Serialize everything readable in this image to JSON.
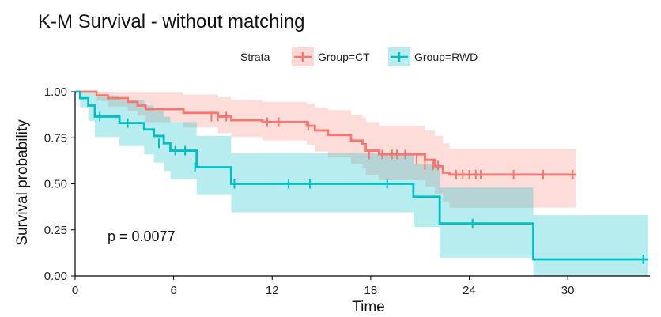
{
  "chart_data": {
    "type": "line",
    "subtype": "kaplan-meier-step",
    "title": "K-M Survival - without matching",
    "xlabel": "Time",
    "ylabel": "Survival probability",
    "xlim": [
      0,
      35
    ],
    "ylim": [
      0,
      1
    ],
    "x_ticks": [
      0,
      6,
      12,
      18,
      24,
      30
    ],
    "y_ticks": [
      0,
      0.25,
      0.5,
      0.75,
      1.0
    ],
    "x_tick_labels": [
      "0",
      "6",
      "12",
      "18",
      "24",
      "30"
    ],
    "y_tick_labels": [
      "0.00",
      "0.25",
      "0.50",
      "0.75",
      "1.00"
    ],
    "grid": false,
    "legend": {
      "title": "Strata",
      "placement": "top-center"
    },
    "annotation": "p = 0.0077",
    "series": [
      {
        "name": "Group=CT",
        "color": "#F8766D",
        "ci_color": "#F8766D",
        "steps": [
          [
            0,
            1.0
          ],
          [
            1.3,
            0.98
          ],
          [
            2.0,
            0.965
          ],
          [
            3.2,
            0.945
          ],
          [
            3.8,
            0.925
          ],
          [
            4.3,
            0.905
          ],
          [
            6.6,
            0.885
          ],
          [
            8.7,
            0.865
          ],
          [
            9.5,
            0.845
          ],
          [
            11.4,
            0.835
          ],
          [
            14.1,
            0.815
          ],
          [
            14.6,
            0.79
          ],
          [
            15.4,
            0.765
          ],
          [
            16.8,
            0.735
          ],
          [
            17.5,
            0.715
          ],
          [
            17.7,
            0.68
          ],
          [
            18.5,
            0.66
          ],
          [
            21.3,
            0.63
          ],
          [
            21.9,
            0.595
          ],
          [
            22.4,
            0.56
          ],
          [
            22.8,
            0.55
          ],
          [
            30.5,
            0.55
          ]
        ],
        "ci_upper": [
          [
            0,
            1.0
          ],
          [
            1.3,
            1.0
          ],
          [
            2.0,
            1.0
          ],
          [
            3.2,
            1.0
          ],
          [
            3.8,
            1.0
          ],
          [
            4.3,
            0.995
          ],
          [
            6.6,
            0.985
          ],
          [
            8.7,
            0.97
          ],
          [
            9.5,
            0.955
          ],
          [
            11.4,
            0.945
          ],
          [
            14.1,
            0.935
          ],
          [
            14.6,
            0.915
          ],
          [
            15.4,
            0.9
          ],
          [
            16.8,
            0.875
          ],
          [
            17.5,
            0.86
          ],
          [
            17.7,
            0.835
          ],
          [
            18.5,
            0.815
          ],
          [
            21.3,
            0.79
          ],
          [
            21.9,
            0.76
          ],
          [
            22.4,
            0.72
          ],
          [
            22.8,
            0.69
          ],
          [
            30.5,
            0.69
          ]
        ],
        "ci_lower": [
          [
            0,
            1.0
          ],
          [
            1.3,
            0.95
          ],
          [
            2.0,
            0.92
          ],
          [
            3.2,
            0.895
          ],
          [
            3.8,
            0.87
          ],
          [
            4.3,
            0.835
          ],
          [
            6.6,
            0.805
          ],
          [
            8.7,
            0.775
          ],
          [
            9.5,
            0.755
          ],
          [
            11.4,
            0.735
          ],
          [
            14.1,
            0.71
          ],
          [
            14.6,
            0.675
          ],
          [
            15.4,
            0.645
          ],
          [
            16.8,
            0.61
          ],
          [
            17.5,
            0.585
          ],
          [
            17.7,
            0.545
          ],
          [
            18.5,
            0.52
          ],
          [
            21.3,
            0.485
          ],
          [
            21.9,
            0.445
          ],
          [
            22.4,
            0.405
          ],
          [
            22.8,
            0.37
          ],
          [
            30.5,
            0.37
          ]
        ],
        "censored": [
          [
            8.3,
            0.865
          ],
          [
            8.7,
            0.865
          ],
          [
            9.2,
            0.865
          ],
          [
            11.7,
            0.835
          ],
          [
            12.4,
            0.835
          ],
          [
            14.2,
            0.815
          ],
          [
            17.9,
            0.66
          ],
          [
            18.7,
            0.66
          ],
          [
            19.3,
            0.66
          ],
          [
            19.6,
            0.66
          ],
          [
            20.1,
            0.66
          ],
          [
            20.8,
            0.63
          ],
          [
            21.3,
            0.6
          ],
          [
            21.8,
            0.6
          ],
          [
            22.1,
            0.6
          ],
          [
            23.2,
            0.55
          ],
          [
            23.6,
            0.55
          ],
          [
            24.0,
            0.55
          ],
          [
            24.4,
            0.55
          ],
          [
            24.7,
            0.55
          ],
          [
            26.7,
            0.55
          ],
          [
            28.5,
            0.55
          ],
          [
            30.3,
            0.55
          ]
        ]
      },
      {
        "name": "Group=RWD",
        "color": "#00BFC4",
        "ci_color": "#00BFC4",
        "steps": [
          [
            0,
            1.0
          ],
          [
            0.3,
            0.965
          ],
          [
            0.8,
            0.925
          ],
          [
            1.2,
            0.865
          ],
          [
            2.7,
            0.83
          ],
          [
            4.2,
            0.795
          ],
          [
            4.8,
            0.76
          ],
          [
            5.4,
            0.72
          ],
          [
            5.8,
            0.68
          ],
          [
            7.4,
            0.59
          ],
          [
            9.5,
            0.5
          ],
          [
            20.6,
            0.43
          ],
          [
            22.2,
            0.285
          ],
          [
            27.9,
            0.09
          ],
          [
            34.9,
            0.09
          ]
        ],
        "ci_upper": [
          [
            0,
            1.0
          ],
          [
            0.3,
            1.0
          ],
          [
            0.8,
            1.0
          ],
          [
            1.2,
            0.98
          ],
          [
            2.7,
            0.955
          ],
          [
            4.2,
            0.925
          ],
          [
            4.8,
            0.895
          ],
          [
            5.4,
            0.865
          ],
          [
            5.8,
            0.835
          ],
          [
            7.4,
            0.76
          ],
          [
            9.5,
            0.665
          ],
          [
            20.6,
            0.605
          ],
          [
            22.2,
            0.48
          ],
          [
            27.9,
            0.33
          ],
          [
            34.9,
            0.33
          ]
        ],
        "ci_lower": [
          [
            0,
            1.0
          ],
          [
            0.3,
            0.915
          ],
          [
            0.8,
            0.84
          ],
          [
            1.2,
            0.755
          ],
          [
            2.7,
            0.705
          ],
          [
            4.2,
            0.66
          ],
          [
            4.8,
            0.615
          ],
          [
            5.4,
            0.57
          ],
          [
            5.8,
            0.525
          ],
          [
            7.4,
            0.44
          ],
          [
            9.5,
            0.345
          ],
          [
            20.6,
            0.265
          ],
          [
            22.2,
            0.1
          ],
          [
            27.9,
            0.0
          ],
          [
            34.9,
            0.0
          ]
        ],
        "censored": [
          [
            1.5,
            0.865
          ],
          [
            3.2,
            0.83
          ],
          [
            5.1,
            0.72
          ],
          [
            6.1,
            0.68
          ],
          [
            6.7,
            0.68
          ],
          [
            7.3,
            0.59
          ],
          [
            9.7,
            0.5
          ],
          [
            13.0,
            0.5
          ],
          [
            14.3,
            0.5
          ],
          [
            19.0,
            0.5
          ],
          [
            24.2,
            0.285
          ],
          [
            34.6,
            0.09
          ]
        ]
      }
    ]
  }
}
